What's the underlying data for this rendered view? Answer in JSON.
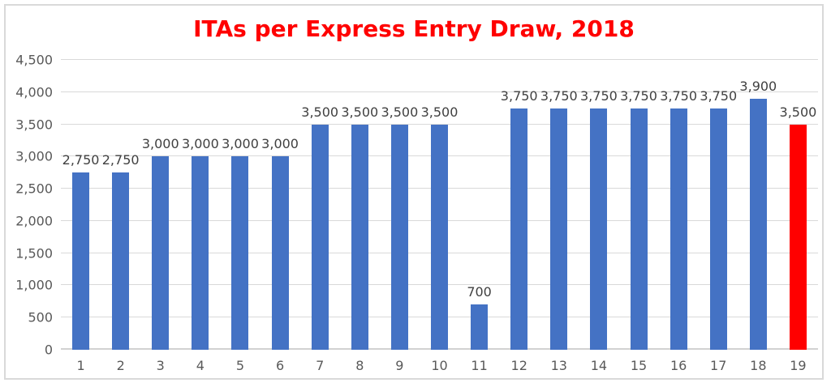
{
  "title": "ITAs per Express Entry Draw, 2018",
  "colors": {
    "title": "#ff0000",
    "bar": "#4472c4",
    "highlight_bar": "#ff0000",
    "gridline": "#d9d9d9",
    "tick_text": "#595959",
    "value_label_text": "#404040",
    "frame_border": "#d9d9d9",
    "background": "#ffffff"
  },
  "chart_data": {
    "type": "bar",
    "title": "ITAs per Express Entry Draw, 2018",
    "xlabel": "",
    "ylabel": "",
    "categories": [
      "1",
      "2",
      "3",
      "4",
      "5",
      "6",
      "7",
      "8",
      "9",
      "10",
      "11",
      "12",
      "13",
      "14",
      "15",
      "16",
      "17",
      "18",
      "19"
    ],
    "values": [
      2750,
      2750,
      3000,
      3000,
      3000,
      3000,
      3500,
      3500,
      3500,
      3500,
      700,
      3750,
      3750,
      3750,
      3750,
      3750,
      3750,
      3900,
      3500
    ],
    "value_labels": [
      "2,750",
      "2,750",
      "3,000",
      "3,000",
      "3,000",
      "3,000",
      "3,500",
      "3,500",
      "3,500",
      "3,500",
      "700",
      "3,750",
      "3,750",
      "3,750",
      "3,750",
      "3,750",
      "3,750",
      "3,900",
      "3,500"
    ],
    "highlight_index": 18,
    "ylim": [
      0,
      4500
    ],
    "ytick_step": 500,
    "ytick_labels": [
      "0",
      "500",
      "1,000",
      "1,500",
      "2,000",
      "2,500",
      "3,000",
      "3,500",
      "4,000",
      "4,500"
    ],
    "grid": true,
    "legend_position": "none"
  }
}
